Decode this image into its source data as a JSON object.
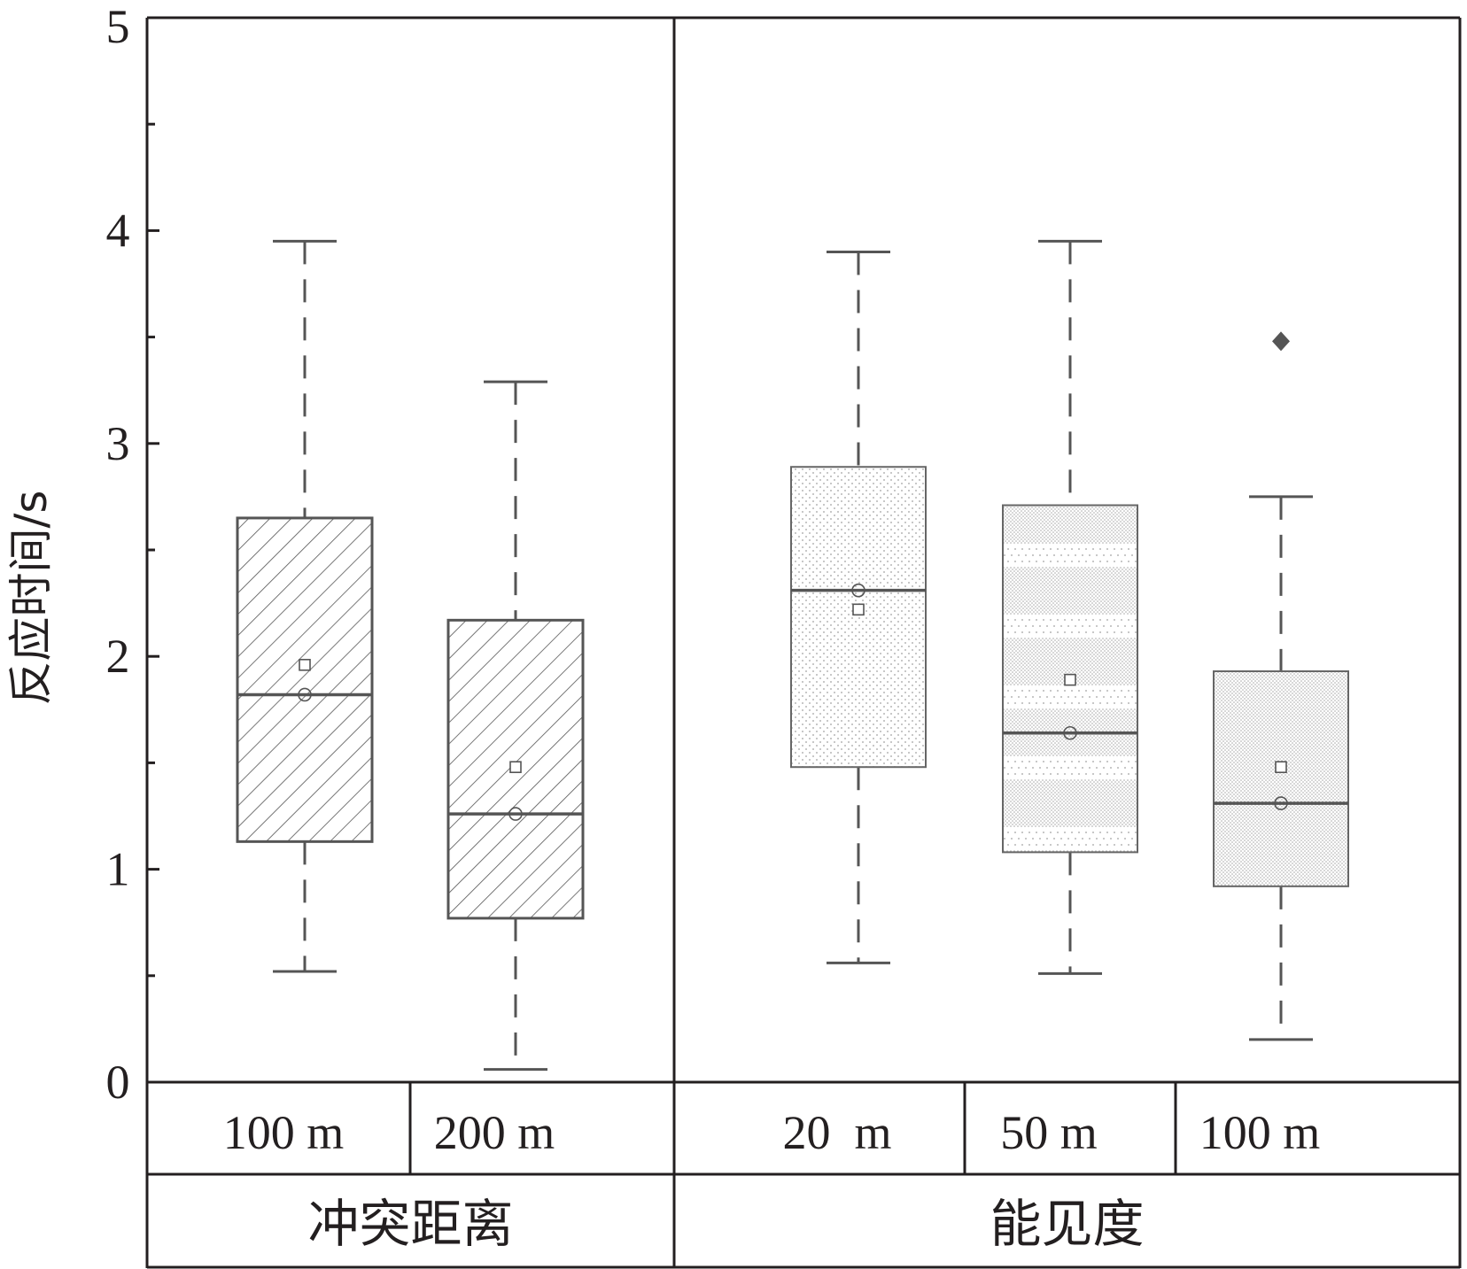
{
  "chart_data": {
    "type": "box",
    "ylabel": "反应时间/s",
    "ylim": [
      0,
      5
    ],
    "yticks": [
      "0",
      "1",
      "2",
      "3",
      "4",
      "5"
    ],
    "groups": [
      {
        "name": "冲突距离",
        "boxes": [
          {
            "label": "100 m",
            "whisker_low": 0.52,
            "q1": 1.13,
            "median": 1.82,
            "q3": 2.65,
            "whisker_high": 3.95,
            "mean": 1.96,
            "center": 1.82,
            "outliers": [],
            "pattern": "hatch"
          },
          {
            "label": "200 m",
            "whisker_low": 0.06,
            "q1": 0.77,
            "median": 1.26,
            "q3": 2.17,
            "whisker_high": 3.29,
            "mean": 1.48,
            "center": 1.26,
            "outliers": [],
            "pattern": "hatch"
          }
        ]
      },
      {
        "name": "能见度",
        "boxes": [
          {
            "label": "20  m",
            "whisker_low": 0.56,
            "q1": 1.48,
            "median": 2.31,
            "q3": 2.89,
            "whisker_high": 3.9,
            "mean": 2.22,
            "center": 2.31,
            "outliers": [],
            "pattern": "dots-sparse"
          },
          {
            "label": "50 m",
            "whisker_low": 0.51,
            "q1": 1.08,
            "median": 1.64,
            "q3": 2.71,
            "whisker_high": 3.95,
            "mean": 1.89,
            "center": 1.64,
            "outliers": [],
            "pattern": "dots-banded"
          },
          {
            "label": "100 m",
            "whisker_low": 0.2,
            "q1": 0.92,
            "median": 1.31,
            "q3": 1.93,
            "whisker_high": 2.75,
            "mean": 1.48,
            "center": 1.31,
            "outliers": [
              3.48
            ],
            "pattern": "dots-dense"
          }
        ]
      }
    ],
    "grid": false,
    "colors": {
      "axis": "#231f20",
      "box_stroke": "#555555",
      "hatch": "#555555",
      "dots": "#a0a0a0",
      "outlier": "#555555"
    }
  }
}
